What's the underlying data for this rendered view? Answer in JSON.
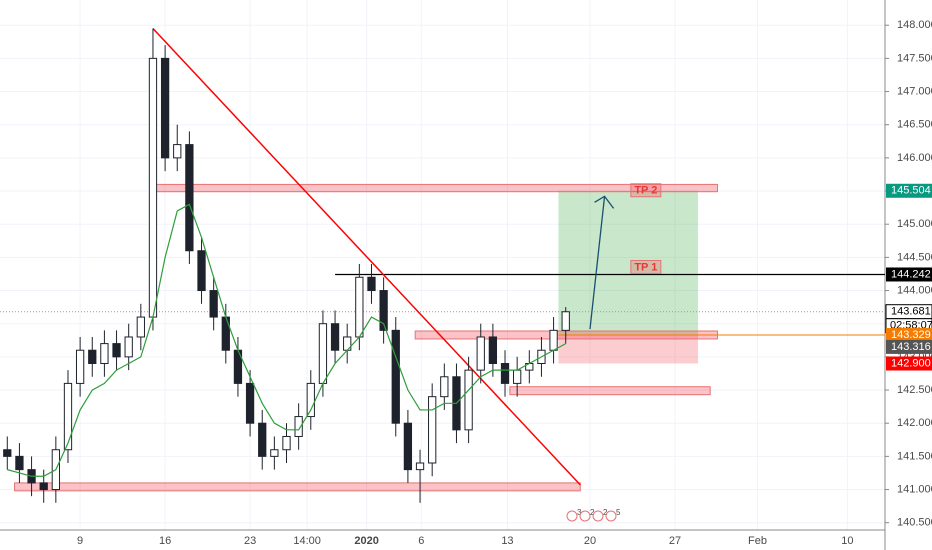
{
  "chart_data": {
    "type": "candlestick",
    "x": [
      3,
      4,
      5,
      6,
      7,
      8,
      9,
      10,
      11,
      12,
      13,
      14,
      15,
      16,
      17,
      18,
      19,
      20,
      21,
      22,
      23,
      24,
      25,
      26,
      27,
      28,
      29,
      30,
      31,
      32,
      33,
      34,
      35,
      36,
      37,
      38,
      39,
      40,
      41,
      42,
      43,
      44,
      45,
      46,
      47,
      48,
      49
    ],
    "open": [
      141.6,
      141.5,
      141.3,
      141.1,
      141.0,
      141.6,
      142.6,
      143.1,
      142.9,
      143.2,
      143.0,
      143.3,
      143.6,
      147.5,
      146.0,
      146.2,
      144.6,
      144.0,
      143.6,
      143.1,
      142.6,
      142.0,
      141.5,
      141.6,
      141.8,
      142.1,
      142.6,
      143.5,
      143.1,
      143.3,
      144.2,
      144.0,
      143.4,
      142.0,
      141.3,
      141.4,
      142.4,
      142.7,
      141.9,
      142.8,
      143.3,
      142.9,
      142.6,
      142.8,
      142.9,
      143.1,
      143.4
    ],
    "high": [
      141.8,
      141.7,
      141.5,
      141.3,
      141.8,
      142.8,
      143.3,
      143.3,
      143.4,
      143.4,
      143.5,
      143.8,
      147.95,
      147.7,
      146.5,
      146.4,
      144.8,
      144.2,
      143.8,
      143.3,
      142.8,
      142.2,
      141.8,
      142.0,
      142.3,
      142.8,
      143.7,
      143.7,
      143.5,
      144.4,
      144.4,
      144.2,
      143.6,
      142.2,
      141.6,
      142.6,
      142.9,
      142.9,
      143.0,
      143.5,
      143.5,
      143.1,
      143.0,
      143.1,
      143.3,
      143.6,
      143.75
    ],
    "low": [
      141.3,
      141.1,
      140.9,
      140.8,
      140.8,
      141.4,
      142.4,
      142.7,
      142.7,
      142.8,
      142.8,
      143.1,
      143.4,
      145.8,
      145.8,
      144.4,
      143.8,
      143.4,
      142.9,
      142.4,
      141.8,
      141.3,
      141.3,
      141.4,
      141.6,
      141.9,
      142.4,
      142.9,
      142.9,
      143.1,
      143.8,
      143.2,
      141.8,
      141.1,
      140.8,
      141.2,
      142.2,
      141.7,
      141.7,
      142.6,
      142.7,
      142.4,
      142.4,
      142.6,
      142.7,
      142.9,
      143.2
    ],
    "close": [
      141.5,
      141.3,
      141.1,
      141.0,
      141.6,
      142.6,
      143.1,
      142.9,
      143.2,
      143.0,
      143.3,
      143.6,
      147.5,
      146.0,
      146.2,
      144.6,
      144.0,
      143.6,
      143.1,
      142.6,
      142.0,
      141.5,
      141.6,
      141.8,
      142.1,
      142.6,
      143.5,
      143.1,
      143.3,
      144.2,
      144.0,
      143.4,
      142.0,
      141.3,
      141.4,
      142.4,
      142.7,
      141.9,
      142.8,
      143.3,
      142.9,
      142.6,
      142.8,
      142.9,
      143.1,
      143.4,
      143.68
    ],
    "up_color": "#ffffff",
    "down_color": "#1e222d",
    "moving_average": {
      "color": "#2e9e3a",
      "values": [
        141.3,
        141.25,
        141.2,
        141.2,
        141.3,
        141.7,
        142.2,
        142.5,
        142.6,
        142.8,
        142.9,
        143.0,
        143.6,
        144.5,
        145.2,
        145.3,
        144.8,
        144.2,
        143.6,
        143.1,
        142.7,
        142.3,
        142.0,
        141.9,
        141.9,
        142.2,
        142.6,
        142.9,
        143.1,
        143.3,
        143.6,
        143.5,
        143.0,
        142.5,
        142.2,
        142.2,
        142.3,
        142.3,
        142.5,
        142.7,
        142.8,
        142.8,
        142.8,
        142.9,
        143.0,
        143.1,
        143.2
      ]
    },
    "xlim": [
      2.4,
      75.3
    ],
    "xticks": [
      {
        "value": 9,
        "label": "9"
      },
      {
        "value": 16,
        "label": "16"
      },
      {
        "value": 23,
        "label": "23"
      },
      {
        "value": 27.7,
        "label": "14:00"
      },
      {
        "value": 32.6,
        "label": "2020"
      },
      {
        "value": 37.1,
        "label": "6"
      },
      {
        "value": 44.2,
        "label": "13"
      },
      {
        "value": 51,
        "label": "20"
      },
      {
        "value": 58,
        "label": "27"
      },
      {
        "value": 64.8,
        "label": "Feb"
      },
      {
        "value": 72.2,
        "label": "10"
      }
    ],
    "ylim": [
      140.39,
      148.38
    ],
    "yticks": [
      {
        "value": 140.5,
        "label": "140.500"
      },
      {
        "value": 141,
        "label": "141.000"
      },
      {
        "value": 141.5,
        "label": "141.500"
      },
      {
        "value": 142,
        "label": "142.000"
      },
      {
        "value": 142.5,
        "label": "142.500"
      },
      {
        "value": 143,
        "label": "143.000"
      },
      {
        "value": 143.5,
        "label": "143.500"
      },
      {
        "value": 144,
        "label": "144.000"
      },
      {
        "value": 144.5,
        "label": "144.500"
      },
      {
        "value": 145,
        "label": "145.000"
      },
      {
        "value": 145.5,
        "label": "145.500"
      },
      {
        "value": 146,
        "label": "146.000"
      },
      {
        "value": 146.5,
        "label": "146.500"
      },
      {
        "value": 147,
        "label": "147.000"
      },
      {
        "value": 147.5,
        "label": "147.500"
      },
      {
        "value": 148,
        "label": "148.000"
      }
    ],
    "zones": [
      {
        "low": 145.49,
        "high": 145.6,
        "x0": 15.0,
        "x1": 61.5
      },
      {
        "low": 143.27,
        "high": 143.39,
        "x0": 36.6,
        "x1": 61.5
      },
      {
        "low": 142.43,
        "high": 142.55,
        "x0": 44.4,
        "x1": 60.9
      },
      {
        "low": 140.98,
        "high": 141.1,
        "x0": 3.6,
        "x1": 50.2
      }
    ],
    "resistance_line": {
      "value": 144.242,
      "x0": 30.0,
      "color": "#000000"
    },
    "trendline": {
      "x": [
        15.0,
        50.2
      ],
      "y": [
        147.95,
        141.07
      ],
      "color": "#ff0000"
    },
    "position": {
      "x0": 48.4,
      "x1": 59.9,
      "target": 145.504,
      "entry": 143.329,
      "stop": 142.9
    },
    "arrow": {
      "x": [
        51.0,
        52.2
      ],
      "y": [
        143.42,
        145.42
      ],
      "color": "#1b4f72"
    },
    "tp_labels": [
      {
        "label": "TP 2",
        "value": 145.504,
        "x": 55.6
      },
      {
        "label": "TP 1",
        "value": 144.242,
        "x": 55.6
      }
    ],
    "price_tags": [
      {
        "value": 145.504,
        "label": "145.504",
        "color": "#089981",
        "text_color": "#ffffff"
      },
      {
        "value": 144.242,
        "label": "144.242",
        "color": "#000000",
        "text_color": "#ffffff"
      },
      {
        "value": 143.681,
        "label": "143.681",
        "color": "#ffffff",
        "text_color": "#000000"
      },
      {
        "value": 143.329,
        "label": "143.329",
        "color": "#f57c00",
        "text_color": "#ffffff"
      },
      {
        "value": 143.316,
        "label": "143.316",
        "color": "#555555",
        "text_color": "#ffffff"
      },
      {
        "value": 142.9,
        "label": "142.900",
        "color": "#ff0000",
        "text_color": "#ffffff"
      }
    ],
    "countdown": "02:58:07",
    "events": [
      "3",
      "2",
      "2",
      "5"
    ]
  }
}
